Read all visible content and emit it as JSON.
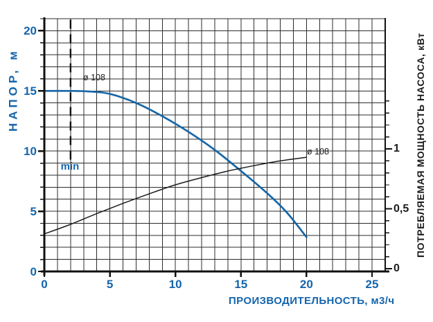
{
  "colors": {
    "accent_blue": "#1565ac",
    "curve_blue": "#1667a8",
    "curve_dark": "#1b1b1b",
    "grid": "#2b2b2b",
    "axis": "#101010"
  },
  "chart_data": {
    "type": "line",
    "title": "",
    "grid": "minor 1x1 on",
    "legend_position": "none",
    "x_axis": {
      "label": "ПРОИЗВОДИТЕЛЬНОСТЬ, м3/ч",
      "tick_labels": [
        "0",
        "5",
        "10",
        "15",
        "20",
        "25"
      ],
      "tick_values": [
        0,
        5,
        10,
        15,
        20,
        25
      ],
      "range": [
        0,
        26
      ],
      "minor_step": 1
    },
    "y_left": {
      "label": "НАПОР, м",
      "tick_labels": [
        "0",
        "5",
        "10",
        "15",
        "20"
      ],
      "tick_values": [
        0,
        5,
        10,
        15,
        20
      ],
      "range": [
        0,
        21
      ],
      "minor_step": 1
    },
    "y_right": {
      "label": "ПОТРЕБЛЯЕМАЯ МОЩНОСТЬ НАСОСА, кВт",
      "tick_labels": [
        "0",
        "0,5",
        "1"
      ],
      "tick_values": [
        0,
        0.5,
        1
      ],
      "range": [
        0,
        1.4
      ],
      "minor_step": 0.1
    },
    "min_line": {
      "label": "min",
      "x": 2.0,
      "style": "dashed-vertical"
    },
    "series": [
      {
        "name": "head-curve",
        "label": "ø 108",
        "axis": "left",
        "color_key": "curve_blue",
        "points": [
          [
            0,
            15
          ],
          [
            2,
            15
          ],
          [
            3.5,
            14.95
          ],
          [
            5,
            14.75
          ],
          [
            7,
            14.0
          ],
          [
            9,
            12.9
          ],
          [
            11,
            11.6
          ],
          [
            13,
            10.1
          ],
          [
            15,
            8.35
          ],
          [
            17,
            6.5
          ],
          [
            18.5,
            4.9
          ],
          [
            20,
            2.85
          ]
        ]
      },
      {
        "name": "power-curve",
        "label": "ø 108",
        "axis": "right",
        "color_key": "curve_dark",
        "points": [
          [
            0,
            0.29
          ],
          [
            2,
            0.37
          ],
          [
            4,
            0.46
          ],
          [
            6,
            0.545
          ],
          [
            8,
            0.625
          ],
          [
            10,
            0.7
          ],
          [
            12,
            0.76
          ],
          [
            14,
            0.815
          ],
          [
            16,
            0.86
          ],
          [
            18,
            0.9
          ],
          [
            20,
            0.93
          ]
        ]
      }
    ]
  }
}
